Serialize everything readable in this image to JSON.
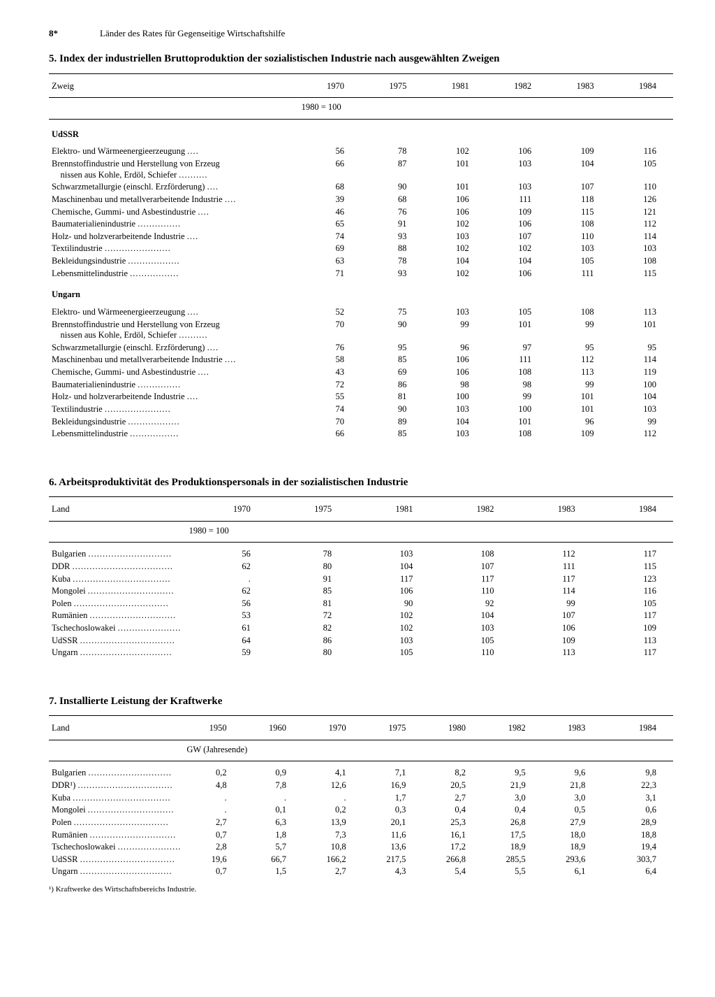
{
  "page_number": "8*",
  "running_title": "Länder des Rates für Gegenseitige Wirtschaftshilfe",
  "table5": {
    "title": "5. Index der industriellen Bruttoproduktion der sozialistischen Industrie nach ausgewählten Zweigen",
    "col_label": "Zweig",
    "years": [
      "1970",
      "1975",
      "1981",
      "1982",
      "1983",
      "1984"
    ],
    "base_note": "1980 = 100",
    "groups": [
      {
        "name": "UdSSR",
        "rows": [
          {
            "label": "Elektro- und Wärmeenergieerzeugung",
            "vals": [
              "56",
              "78",
              "102",
              "106",
              "109",
              "116"
            ]
          },
          {
            "label": "Brennstoffindustrie und Herstellung von Erzeugnissen aus Kohle, Erdöl, Schiefer",
            "multiline": true,
            "vals": [
              "66",
              "87",
              "101",
              "103",
              "104",
              "105"
            ]
          },
          {
            "label": "Schwarzmetallurgie (einschl. Erzförderung)",
            "vals": [
              "68",
              "90",
              "101",
              "103",
              "107",
              "110"
            ]
          },
          {
            "label": "Maschinenbau und metallverarbeitende Industrie",
            "vals": [
              "39",
              "68",
              "106",
              "111",
              "118",
              "126"
            ]
          },
          {
            "label": "Chemische, Gummi- und Asbestindustrie",
            "vals": [
              "46",
              "76",
              "106",
              "109",
              "115",
              "121"
            ]
          },
          {
            "label": "Baumaterialienindustrie",
            "vals": [
              "65",
              "91",
              "102",
              "106",
              "108",
              "112"
            ]
          },
          {
            "label": "Holz- und holzverarbeitende Industrie",
            "vals": [
              "74",
              "93",
              "103",
              "107",
              "110",
              "114"
            ]
          },
          {
            "label": "Textilindustrie",
            "vals": [
              "69",
              "88",
              "102",
              "102",
              "103",
              "103"
            ]
          },
          {
            "label": "Bekleidungsindustrie",
            "vals": [
              "63",
              "78",
              "104",
              "104",
              "105",
              "108"
            ]
          },
          {
            "label": "Lebensmittelindustrie",
            "vals": [
              "71",
              "93",
              "102",
              "106",
              "111",
              "115"
            ]
          }
        ]
      },
      {
        "name": "Ungarn",
        "rows": [
          {
            "label": "Elektro- und Wärmeenergieerzeugung",
            "vals": [
              "52",
              "75",
              "103",
              "105",
              "108",
              "113"
            ]
          },
          {
            "label": "Brennstoffindustrie und Herstellung von Erzeugnissen aus Kohle, Erdöl, Schiefer",
            "multiline": true,
            "vals": [
              "70",
              "90",
              "99",
              "101",
              "99",
              "101"
            ]
          },
          {
            "label": "Schwarzmetallurgie (einschl. Erzförderung)",
            "vals": [
              "76",
              "95",
              "96",
              "97",
              "95",
              "95"
            ]
          },
          {
            "label": "Maschinenbau und metallverarbeitende Industrie",
            "vals": [
              "58",
              "85",
              "106",
              "111",
              "112",
              "114"
            ]
          },
          {
            "label": "Chemische, Gummi- und Asbestindustrie",
            "vals": [
              "43",
              "69",
              "106",
              "108",
              "113",
              "119"
            ]
          },
          {
            "label": "Baumaterialienindustrie",
            "vals": [
              "72",
              "86",
              "98",
              "98",
              "99",
              "100"
            ]
          },
          {
            "label": "Holz- und holzverarbeitende Industrie",
            "vals": [
              "55",
              "81",
              "100",
              "99",
              "101",
              "104"
            ]
          },
          {
            "label": "Textilindustrie",
            "vals": [
              "74",
              "90",
              "103",
              "100",
              "101",
              "103"
            ]
          },
          {
            "label": "Bekleidungsindustrie",
            "vals": [
              "70",
              "89",
              "104",
              "101",
              "96",
              "99"
            ]
          },
          {
            "label": "Lebensmittelindustrie",
            "vals": [
              "66",
              "85",
              "103",
              "108",
              "109",
              "112"
            ]
          }
        ]
      }
    ]
  },
  "table6": {
    "title": "6. Arbeitsproduktivität des Produktionspersonals in der sozialistischen Industrie",
    "col_label": "Land",
    "years": [
      "1970",
      "1975",
      "1981",
      "1982",
      "1983",
      "1984"
    ],
    "base_note": "1980 = 100",
    "rows": [
      {
        "label": "Bulgarien",
        "vals": [
          "56",
          "78",
          "103",
          "108",
          "112",
          "117"
        ]
      },
      {
        "label": "DDR",
        "vals": [
          "62",
          "80",
          "104",
          "107",
          "111",
          "115"
        ]
      },
      {
        "label": "Kuba",
        "vals": [
          ".",
          "91",
          "117",
          "117",
          "117",
          "123"
        ]
      },
      {
        "label": "Mongolei",
        "vals": [
          "62",
          "85",
          "106",
          "110",
          "114",
          "116"
        ]
      },
      {
        "label": "Polen",
        "vals": [
          "56",
          "81",
          "90",
          "92",
          "99",
          "105"
        ]
      },
      {
        "label": "Rumänien",
        "vals": [
          "53",
          "72",
          "102",
          "104",
          "107",
          "117"
        ]
      },
      {
        "label": "Tschechoslowakei",
        "vals": [
          "61",
          "82",
          "102",
          "103",
          "106",
          "109"
        ]
      },
      {
        "label": "UdSSR",
        "vals": [
          "64",
          "86",
          "103",
          "105",
          "109",
          "113"
        ]
      },
      {
        "label": "Ungarn",
        "vals": [
          "59",
          "80",
          "105",
          "110",
          "113",
          "117"
        ]
      }
    ]
  },
  "table7": {
    "title": "7. Installierte Leistung der Kraftwerke",
    "col_label": "Land",
    "years": [
      "1950",
      "1960",
      "1970",
      "1975",
      "1980",
      "1982",
      "1983",
      "1984"
    ],
    "base_note": "GW (Jahresende)",
    "rows": [
      {
        "label": "Bulgarien",
        "vals": [
          "0,2",
          "0,9",
          "4,1",
          "7,1",
          "8,2",
          "9,5",
          "9,6",
          "9,8"
        ]
      },
      {
        "label": "DDR¹)",
        "vals": [
          "4,8",
          "7,8",
          "12,6",
          "16,9",
          "20,5",
          "21,9",
          "21,8",
          "22,3"
        ]
      },
      {
        "label": "Kuba",
        "vals": [
          ".",
          ".",
          ".",
          "1,7",
          "2,7",
          "3,0",
          "3,0",
          "3,1"
        ]
      },
      {
        "label": "Mongolei",
        "vals": [
          ".",
          "0,1",
          "0,2",
          "0,3",
          "0,4",
          "0,4",
          "0,5",
          "0,6"
        ]
      },
      {
        "label": "Polen",
        "vals": [
          "2,7",
          "6,3",
          "13,9",
          "20,1",
          "25,3",
          "26,8",
          "27,9",
          "28,9"
        ]
      },
      {
        "label": "Rumänien",
        "vals": [
          "0,7",
          "1,8",
          "7,3",
          "11,6",
          "16,1",
          "17,5",
          "18,0",
          "18,8"
        ]
      },
      {
        "label": "Tschechoslowakei",
        "vals": [
          "2,8",
          "5,7",
          "10,8",
          "13,6",
          "17,2",
          "18,9",
          "18,9",
          "19,4"
        ]
      },
      {
        "label": "UdSSR",
        "vals": [
          "19,6",
          "66,7",
          "166,2",
          "217,5",
          "266,8",
          "285,5",
          "293,6",
          "303,7"
        ]
      },
      {
        "label": "Ungarn",
        "vals": [
          "0,7",
          "1,5",
          "2,7",
          "4,3",
          "5,4",
          "5,5",
          "6,1",
          "6,4"
        ]
      }
    ],
    "footnote": "¹) Kraftwerke des Wirtschaftsbereichs Industrie."
  }
}
